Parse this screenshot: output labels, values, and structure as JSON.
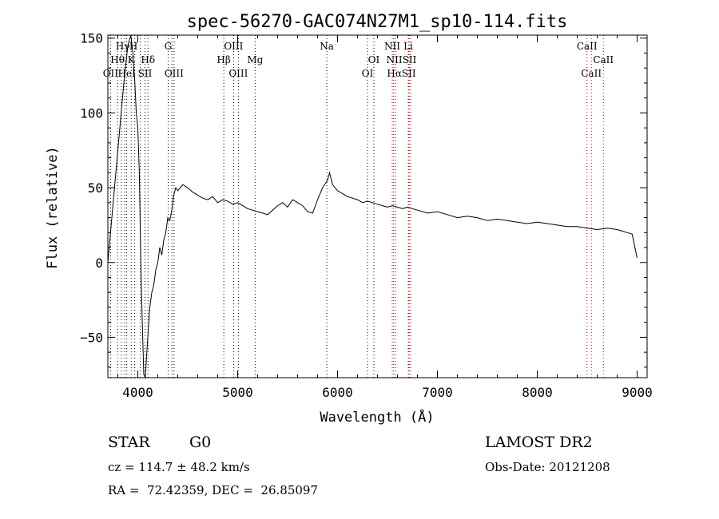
{
  "chart_data": {
    "type": "line",
    "title": "spec-56270-GAC074N27M1_sp10-114.fits",
    "xlabel": "Wavelength (Å)",
    "ylabel": "Flux (relative)",
    "xlim": [
      3700,
      9100
    ],
    "ylim": [
      -77,
      152
    ],
    "xticks": [
      4000,
      5000,
      6000,
      7000,
      8000,
      9000
    ],
    "yticks": [
      -50,
      0,
      50,
      100,
      150
    ],
    "grid": false,
    "series": [
      {
        "color": "#000000",
        "x": [
          3700,
          3740,
          3780,
          3820,
          3860,
          3900,
          3930,
          3950,
          3970,
          3985,
          4000,
          4015,
          4030,
          4045,
          4060,
          4075,
          4090,
          4105,
          4120,
          4140,
          4160,
          4180,
          4200,
          4220,
          4240,
          4260,
          4280,
          4300,
          4320,
          4340,
          4360,
          4380,
          4400,
          4450,
          4500,
          4550,
          4600,
          4650,
          4700,
          4750,
          4800,
          4850,
          4900,
          4950,
          5000,
          5050,
          5100,
          5150,
          5200,
          5250,
          5300,
          5350,
          5400,
          5450,
          5500,
          5550,
          5600,
          5650,
          5700,
          5750,
          5800,
          5850,
          5900,
          5920,
          5950,
          6000,
          6050,
          6100,
          6150,
          6200,
          6250,
          6300,
          6350,
          6400,
          6450,
          6500,
          6550,
          6600,
          6650,
          6700,
          6750,
          6800,
          6900,
          7000,
          7100,
          7200,
          7300,
          7400,
          7500,
          7600,
          7700,
          7800,
          7900,
          8000,
          8100,
          8200,
          8300,
          8400,
          8500,
          8600,
          8700,
          8800,
          8850,
          8900,
          8950,
          9000
        ],
        "y": [
          0,
          30,
          60,
          90,
          120,
          145,
          152,
          140,
          120,
          100,
          90,
          60,
          0,
          -40,
          -75,
          -77,
          -60,
          -45,
          -30,
          -20,
          -15,
          -5,
          0,
          10,
          5,
          15,
          20,
          30,
          28,
          35,
          45,
          50,
          48,
          52,
          50,
          47,
          45,
          43,
          42,
          44,
          40,
          42,
          41,
          39,
          40,
          38,
          36,
          35,
          34,
          33,
          32,
          35,
          38,
          40,
          37,
          42,
          40,
          38,
          34,
          33,
          42,
          50,
          55,
          60,
          52,
          48,
          46,
          44,
          43,
          42,
          40,
          41,
          40,
          39,
          38,
          37,
          38,
          37,
          36,
          37,
          36,
          35,
          33,
          34,
          32,
          30,
          31,
          30,
          28,
          29,
          28,
          27,
          26,
          27,
          26,
          25,
          24,
          24,
          23,
          22,
          23,
          22,
          21,
          20,
          19,
          3
        ]
      }
    ],
    "lines": [
      {
        "x": 3727,
        "color": "#000000"
      },
      {
        "x": 3797,
        "color": "#000000"
      },
      {
        "x": 3835,
        "color": "#000000"
      },
      {
        "x": 3869,
        "color": "#000000"
      },
      {
        "x": 3889,
        "color": "#000000"
      },
      {
        "x": 3934,
        "color": "#000000"
      },
      {
        "x": 3969,
        "color": "#000000"
      },
      {
        "x": 4026,
        "color": "#000000"
      },
      {
        "x": 4072,
        "color": "#000000"
      },
      {
        "x": 4102,
        "color": "#000000"
      },
      {
        "x": 4304,
        "color": "#000000"
      },
      {
        "x": 4341,
        "color": "#000000"
      },
      {
        "x": 4363,
        "color": "#000000"
      },
      {
        "x": 4861,
        "color": "#000000"
      },
      {
        "x": 4959,
        "color": "#000000"
      },
      {
        "x": 5007,
        "color": "#000000"
      },
      {
        "x": 5175,
        "color": "#000000"
      },
      {
        "x": 5893,
        "color": "#000000"
      },
      {
        "x": 6300,
        "color": "#000000"
      },
      {
        "x": 6364,
        "color": "#000000"
      },
      {
        "x": 6548,
        "color": "#cc0000"
      },
      {
        "x": 6563,
        "color": "#000000"
      },
      {
        "x": 6584,
        "color": "#cc0000"
      },
      {
        "x": 6708,
        "color": "#cc0000"
      },
      {
        "x": 6717,
        "color": "#000000"
      },
      {
        "x": 6731,
        "color": "#cc0000"
      },
      {
        "x": 8498,
        "color": "#cc0000"
      },
      {
        "x": 8542,
        "color": "#cc0000"
      },
      {
        "x": 8662,
        "color": "#cc0000"
      }
    ],
    "line_labels": [
      {
        "text": "Hγ",
        "x": 3850,
        "row": 1
      },
      {
        "text": "H",
        "x": 3957,
        "row": 1
      },
      {
        "text": "G",
        "x": 4304,
        "row": 1
      },
      {
        "text": "OIII",
        "x": 4959,
        "row": 1
      },
      {
        "text": "Na",
        "x": 5893,
        "row": 1
      },
      {
        "text": "NII",
        "x": 6548,
        "row": 1
      },
      {
        "text": "Li",
        "x": 6708,
        "row": 1
      },
      {
        "text": "CaII",
        "x": 8498,
        "row": 1
      },
      {
        "text": "Hθ",
        "x": 3797,
        "row": 2
      },
      {
        "text": "K",
        "x": 3934,
        "row": 2
      },
      {
        "text": "Hδ",
        "x": 4102,
        "row": 2
      },
      {
        "text": "Hβ",
        "x": 4861,
        "row": 2
      },
      {
        "text": "Mg",
        "x": 5175,
        "row": 2
      },
      {
        "text": "OI",
        "x": 6364,
        "row": 2
      },
      {
        "text": "NIISII",
        "x": 6640,
        "row": 2
      },
      {
        "text": "CaII",
        "x": 8662,
        "row": 2
      },
      {
        "text": "OII",
        "x": 3727,
        "row": 3
      },
      {
        "text": "HeI",
        "x": 3889,
        "row": 3
      },
      {
        "text": "SII",
        "x": 4072,
        "row": 3
      },
      {
        "text": "OIII",
        "x": 4363,
        "row": 3
      },
      {
        "text": "OIII",
        "x": 5007,
        "row": 3
      },
      {
        "text": "OI",
        "x": 6300,
        "row": 3
      },
      {
        "text": "HαSII",
        "x": 6640,
        "row": 3
      },
      {
        "text": "CaII",
        "x": 8542,
        "row": 3
      }
    ]
  },
  "info": {
    "object_class": "STAR",
    "subclass": "G0",
    "survey": "LAMOST DR2",
    "cz": "cz = 114.7 ± 48.2 km/s",
    "obs_date": "Obs-Date: 20121208",
    "coords": "RA =  72.42359, DEC =  26.85097"
  }
}
